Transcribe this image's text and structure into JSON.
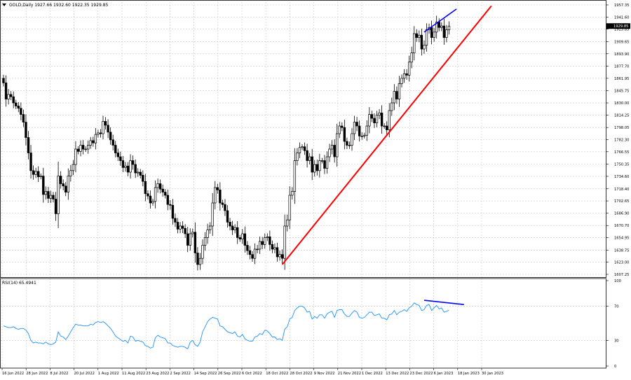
{
  "header": {
    "symbol_info": "GOLD,Daily  1927.66 1932.60 1922.35 1929.85",
    "rsi_label": "RSI(14) 65.4941"
  },
  "colors": {
    "bull": "#ffffff",
    "bear": "#000000",
    "grid": "#c8c8c8",
    "trendline": "#ff0000",
    "divergence": "#0000ff",
    "rsi_line": "#1e90ff",
    "price_tag_bg": "#000000"
  },
  "chart_data": [
    {
      "type": "candlestick",
      "symbol": "GOLD",
      "timeframe": "Daily",
      "ylim": [
        1607.25,
        1957.35
      ],
      "ytick_labels": [
        "1957.35",
        "1941.60",
        "1925.85",
        "1909.65",
        "1893.90",
        "1877.70",
        "1861.95",
        "1845.75",
        "1830.00",
        "1814.25",
        "1798.05",
        "1782.30",
        "1766.55",
        "1750.35",
        "1734.60",
        "1718.40",
        "1702.65",
        "1686.90",
        "1670.70",
        "1654.95",
        "1638.75",
        "1623.00",
        "1607.25"
      ],
      "last_price_tag": "1929.85",
      "xtick_labels": [
        "16 Jun 2022",
        "28 Jun 2022",
        "8 Jul 2022",
        "20 Jul 2022",
        "1 Aug 2022",
        "11 Aug 2022",
        "23 Aug 2022",
        "2 Sep 2022",
        "14 Sep 2022",
        "26 Sep 2022",
        "6 Oct 2022",
        "18 Oct 2022",
        "28 Oct 2022",
        "9 Nov 2022",
        "21 Nov 2022",
        "1 Dec 2022",
        "13 Dec 2022",
        "23 Dec 2022",
        "6 Jan 2023",
        "18 Jan 2023",
        "30 Jan 2023"
      ],
      "closes": [
        1856,
        1835,
        1841,
        1838,
        1830,
        1826,
        1823,
        1815,
        1805,
        1785,
        1765,
        1742,
        1737,
        1741,
        1734,
        1735,
        1711,
        1715,
        1706,
        1710,
        1705,
        1686,
        1735,
        1725,
        1722,
        1714,
        1735,
        1742,
        1750,
        1770,
        1767,
        1775,
        1770,
        1770,
        1775,
        1781,
        1778,
        1789,
        1791,
        1790,
        1806,
        1801,
        1792,
        1782,
        1775,
        1765,
        1760,
        1755,
        1746,
        1748,
        1740,
        1755,
        1750,
        1739,
        1740,
        1736,
        1728,
        1712,
        1709,
        1700,
        1702,
        1720,
        1725,
        1718,
        1714,
        1710,
        1698,
        1697,
        1680,
        1675,
        1666,
        1670,
        1667,
        1660,
        1645,
        1660,
        1662,
        1635,
        1620,
        1628,
        1645,
        1655,
        1665,
        1670,
        1700,
        1720,
        1717,
        1700,
        1698,
        1690,
        1675,
        1670,
        1665,
        1668,
        1655,
        1653,
        1660,
        1645,
        1638,
        1633,
        1628,
        1640,
        1640,
        1650,
        1646,
        1655,
        1656,
        1646,
        1640,
        1642,
        1630,
        1633,
        1628,
        1670,
        1678,
        1710,
        1715,
        1755,
        1765,
        1772,
        1773,
        1768,
        1755,
        1760,
        1740,
        1750,
        1742,
        1755,
        1755,
        1745,
        1760,
        1770,
        1775,
        1760,
        1790,
        1800,
        1798,
        1780,
        1775,
        1775,
        1790,
        1805,
        1800,
        1787,
        1787,
        1788,
        1800,
        1815,
        1810,
        1804,
        1814,
        1817,
        1800,
        1800,
        1795,
        1820,
        1830,
        1845,
        1835,
        1855,
        1862,
        1868,
        1866,
        1883,
        1895,
        1920,
        1915,
        1918,
        1900,
        1905,
        1925,
        1928,
        1915,
        1922,
        1935,
        1928,
        1930,
        1915,
        1925,
        1929.85
      ],
      "trendline": {
        "start_bar": 112,
        "start_price": 1620,
        "end_bar": 196,
        "end_price": 1956
      },
      "divergence_line": {
        "start_bar": 169,
        "start_price": 1922,
        "end_bar": 182,
        "end_price": 1952
      }
    },
    {
      "type": "line",
      "series": [
        {
          "name": "RSI(14)",
          "values": [
            47,
            46,
            45,
            45,
            46,
            44,
            43,
            44,
            44,
            42,
            38,
            30,
            27,
            28,
            27,
            27,
            26,
            28,
            26,
            25,
            26,
            28,
            40,
            35,
            34,
            31,
            35,
            40,
            45,
            49,
            48,
            48,
            47,
            47,
            47,
            49,
            48,
            51,
            52,
            51,
            52,
            50,
            47,
            44,
            40,
            35,
            33,
            31,
            29,
            30,
            27,
            35,
            34,
            29,
            30,
            29,
            28,
            24,
            23,
            21,
            22,
            33,
            36,
            34,
            33,
            32,
            27,
            27,
            24,
            23,
            22,
            23,
            23,
            22,
            20,
            28,
            30,
            25,
            23,
            28,
            40,
            46,
            52,
            55,
            57,
            56,
            55,
            47,
            46,
            43,
            40,
            39,
            38,
            40,
            35,
            34,
            37,
            32,
            30,
            29,
            29,
            34,
            35,
            38,
            37,
            42,
            41,
            38,
            34,
            34,
            31,
            32,
            30,
            43,
            46,
            55,
            57,
            65,
            68,
            70,
            70,
            68,
            63,
            64,
            55,
            58,
            56,
            60,
            60,
            56,
            61,
            63,
            64,
            57,
            65,
            66,
            66,
            61,
            58,
            58,
            62,
            65,
            63,
            57,
            56,
            57,
            60,
            63,
            63,
            59,
            60,
            61,
            56,
            56,
            54,
            60,
            61,
            65,
            60,
            63,
            64,
            66,
            64,
            68,
            70,
            74,
            72,
            71,
            65,
            66,
            71,
            72,
            65,
            68,
            71,
            67,
            68,
            63,
            64,
            65.49
          ]
        }
      ],
      "ylim": [
        0,
        100
      ],
      "ytick_labels": [
        "100",
        "70",
        "30",
        "0"
      ],
      "ytick_values": [
        100,
        70,
        30,
        0
      ],
      "divergence_line": {
        "start_bar": 169,
        "start_value": 77,
        "end_bar": 185,
        "end_value": 72
      }
    }
  ]
}
